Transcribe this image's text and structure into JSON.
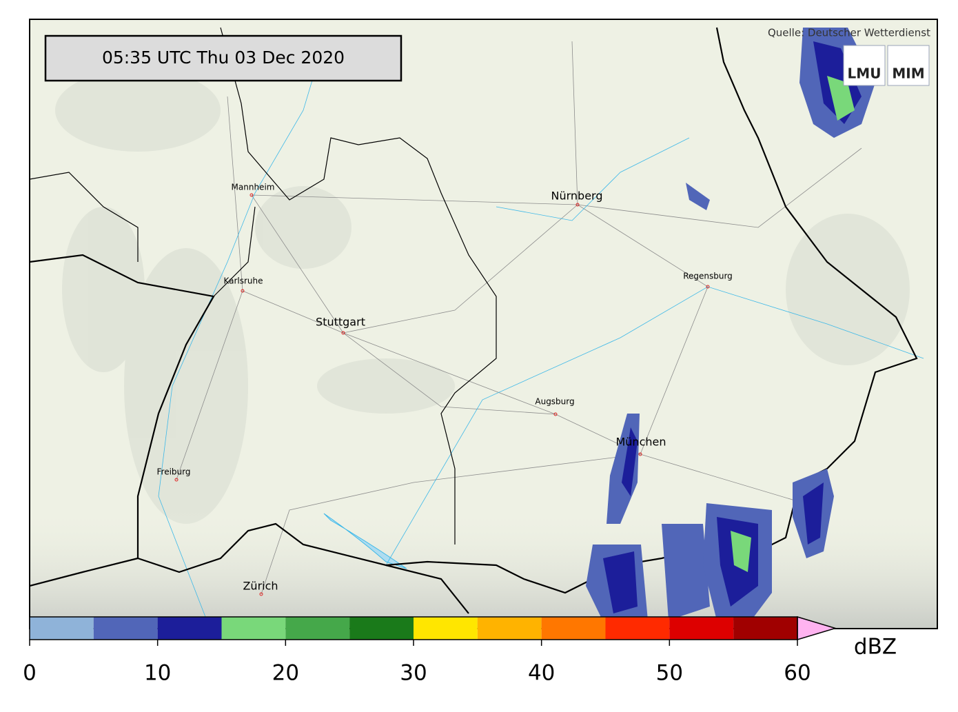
{
  "timestamp": "05:35 UTC  Thu 03 Dec 2020",
  "source": "Quelle: Deutscher Wetterdienst",
  "logo": {
    "left": "LMU",
    "right": "MIM"
  },
  "cities": [
    "Mannheim",
    "Nürnberg",
    "Karlsruhe",
    "Stuttgart",
    "Regensburg",
    "Augsburg",
    "München",
    "Freiburg",
    "Zürich"
  ],
  "colorbar": {
    "levels": [
      0,
      5,
      10,
      15,
      20,
      25,
      30,
      35,
      40,
      45,
      50,
      55,
      60
    ],
    "colors": [
      "#8fb3d9",
      "#5166b8",
      "#1c1e9a",
      "#79d87a",
      "#45a84a",
      "#1a7a1a",
      "#ffe600",
      "#ffb300",
      "#ff7700",
      "#ff2a00",
      "#dd0000",
      "#a00000"
    ],
    "over_color": "#ffb3f0",
    "ticks": [
      0,
      10,
      20,
      30,
      40,
      50,
      60
    ],
    "unit": "dBZ"
  }
}
